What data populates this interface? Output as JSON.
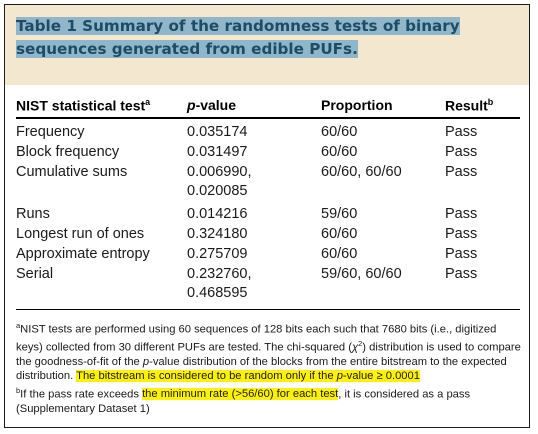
{
  "caption": {
    "line1": "Table 1 Summary of the randomness tests of binary",
    "line2": "sequences generated from edible PUFs."
  },
  "headers": {
    "test": "NIST statistical test",
    "test_sup": "a",
    "pvalue_italic": "p",
    "pvalue_rest": "-value",
    "proportion": "Proportion",
    "result": "Result",
    "result_sup": "b"
  },
  "rows": [
    {
      "test": "Frequency",
      "p": "0.035174",
      "p2": "",
      "prop": "60/60",
      "result": "Pass"
    },
    {
      "test": "Block frequency",
      "p": "0.031497",
      "p2": "",
      "prop": "60/60",
      "result": "Pass"
    },
    {
      "test": "Cumulative sums",
      "p": "0.006990,",
      "p2": "0.020085",
      "prop": "60/60, 60/60",
      "result": "Pass"
    },
    {
      "test": "Runs",
      "p": "0.014216",
      "p2": "",
      "prop": "59/60",
      "result": "Pass"
    },
    {
      "test": "Longest run of ones",
      "p": "0.324180",
      "p2": "",
      "prop": "60/60",
      "result": "Pass"
    },
    {
      "test": "Approximate entropy",
      "p": "0.275709",
      "p2": "",
      "prop": "60/60",
      "result": "Pass"
    },
    {
      "test": "Serial",
      "p": "0.232760,",
      "p2": "0.468595",
      "prop": "59/60, 60/60",
      "result": "Pass"
    }
  ],
  "footnotes": {
    "a_mark": "a",
    "a_text1": "NIST tests are performed using 60 sequences of 128 bits each such that 7680 bits (i.e., digitized keys) collected from 30 different PUFs are tested. The chi-squared (",
    "chi": "χ",
    "chi_sup": "2",
    "a_text2": ") distribution is used to compare the goodness-of-fit of the ",
    "a_p": "p",
    "a_text3": "-value distribution of the blocks from the entire bitstream to the expected distribution. ",
    "a_hl1": "The bitstream is considered to be random only if the ",
    "a_hl_p": "p",
    "a_hl2": "-value ≥ 0.0001",
    "b_mark": "b",
    "b_text1": "If the pass rate exceeds ",
    "b_hl": "the minimum rate (>56/60) for each test",
    "b_text2": ", it is considered as a pass (Supplementary Dataset 1)"
  }
}
